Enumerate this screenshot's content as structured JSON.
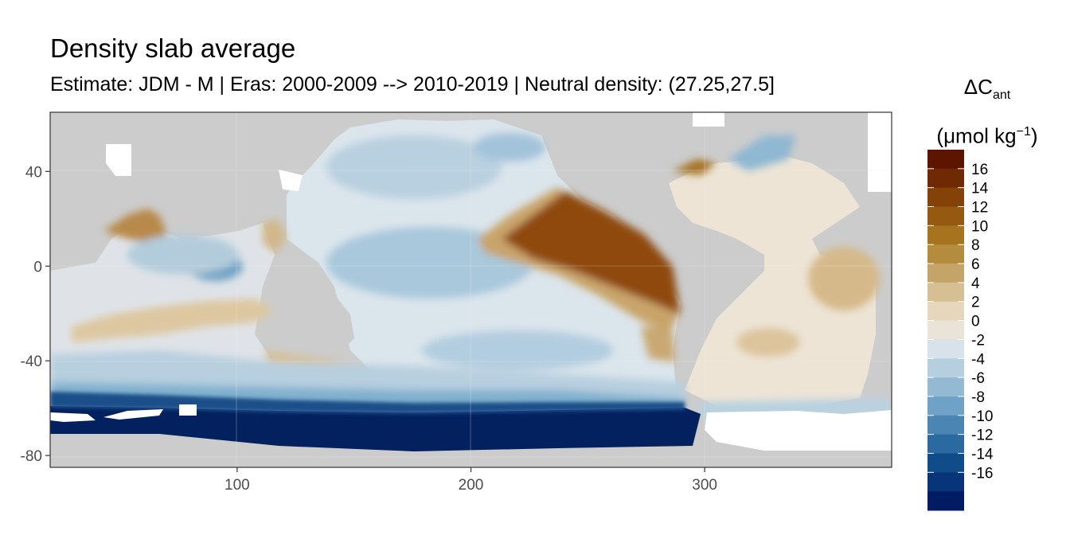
{
  "title": "Density slab average",
  "subtitle": "Estimate: JDM - M | Eras: 2000-2009 --> 2010-2019 | Neutral density: (27.25,27.5]",
  "legend": {
    "title_main": "ΔC",
    "title_sub": "ant",
    "unit_prefix": "(μmol kg",
    "unit_sup": "−1",
    "unit_suffix": ")",
    "labels": [
      "16",
      "14",
      "12",
      "10",
      "8",
      "6",
      "4",
      "2",
      "0",
      "-2",
      "-4",
      "-6",
      "-8",
      "-10",
      "-12",
      "-14",
      "-16"
    ],
    "colors": [
      "#5e1500",
      "#6f2a03",
      "#844108",
      "#95590f",
      "#a8731f",
      "#b58b3d",
      "#c4a468",
      "#d6bf92",
      "#e6d7bc",
      "#eae3d8",
      "#d8e2ea",
      "#b6cfdf",
      "#94bad3",
      "#6fa2c6",
      "#4b85b3",
      "#2a6aa0",
      "#0f4c89",
      "#083579",
      "#021c63"
    ]
  },
  "axes": {
    "x_ticks": [
      "100",
      "200",
      "300"
    ],
    "y_ticks": [
      "40",
      "0",
      "-40",
      "-80"
    ],
    "x_tick_values": [
      100,
      200,
      300
    ],
    "y_tick_values": [
      40,
      0,
      -40,
      -80
    ],
    "xlim": [
      20,
      380
    ],
    "ylim": [
      -85,
      65
    ]
  },
  "colors": {
    "land": "#cccccc",
    "ice": "#ffffff",
    "panel_border": "#333333"
  }
}
